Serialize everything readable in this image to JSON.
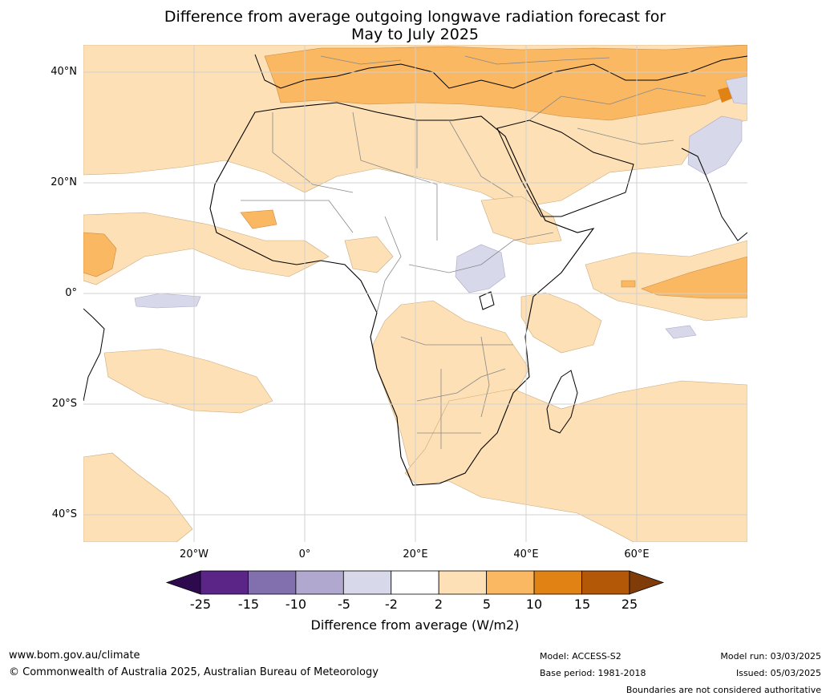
{
  "title": {
    "line1": "Difference from average outgoing longwave radiation forecast for",
    "line2": "May to July 2025"
  },
  "map": {
    "lat_labels": [
      "40°N",
      "20°N",
      "0°",
      "20°S",
      "40°S"
    ],
    "lon_labels": [
      "20°W",
      "0°",
      "20°E",
      "40°E",
      "60°E"
    ]
  },
  "colorbar": {
    "ticks": [
      "-25",
      "-15",
      "-10",
      "-5",
      "-2",
      "2",
      "5",
      "10",
      "15",
      "25"
    ],
    "colors": [
      "#2d0a4e",
      "#5a2586",
      "#8170ad",
      "#b1a8cf",
      "#d8d8eb",
      "#ffffff",
      "#fee0b6",
      "#fbb862",
      "#e08214",
      "#b35806",
      "#7f3b08"
    ],
    "title": "Difference from average (W/m2)"
  },
  "footer": {
    "website": "www.bom.gov.au/climate",
    "copyright": "© Commonwealth of Australia 2025, Australian Bureau of Meteorology",
    "model": "Model: ACCESS-S2",
    "base_period": "Base period: 1981-2018",
    "model_run": "Model run: 03/03/2025",
    "issued": "Issued: 05/03/2025",
    "disclaimer": "Boundaries are not considered authoritative"
  }
}
